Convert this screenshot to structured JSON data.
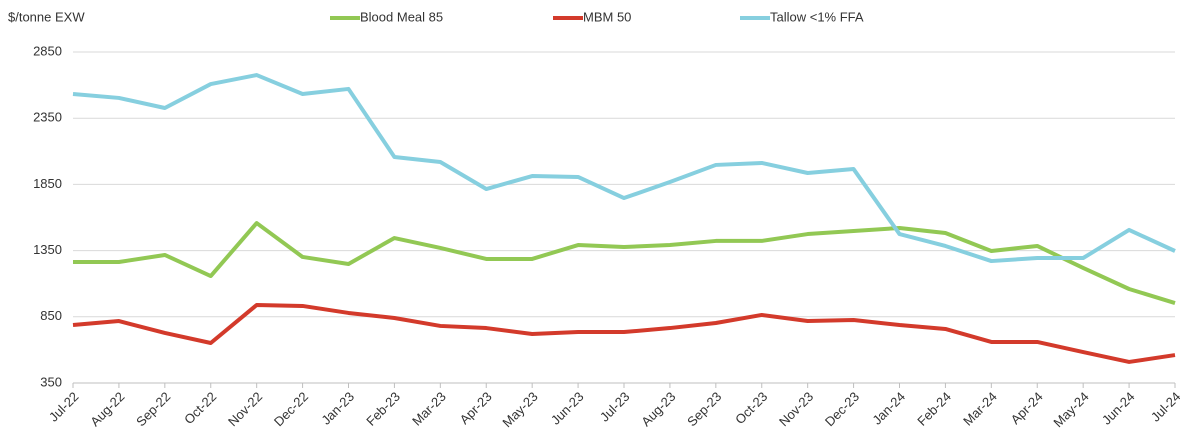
{
  "chart_data": {
    "type": "line",
    "y_label": "$/tonne EXW",
    "categories": [
      "Jul-22",
      "Aug-22",
      "Sep-22",
      "Oct-22",
      "Nov-22",
      "Dec-22",
      "Jan-23",
      "Feb-23",
      "Mar-23",
      "Apr-23",
      "May-23",
      "Jun-23",
      "Jul-23",
      "Aug-23",
      "Sep-23",
      "Oct-23",
      "Nov-23",
      "Dec-23",
      "Jan-24",
      "Feb-24",
      "Mar-24",
      "Apr-24",
      "May-24",
      "Jun-24",
      "Jul-24"
    ],
    "series": [
      {
        "name": "Blood Meal 85",
        "color": "#92c854",
        "values": [
          1264,
          1264,
          1317,
          1158,
          1558,
          1302,
          1249,
          1445,
          1370,
          1287,
          1287,
          1392,
          1377,
          1392,
          1423,
          1423,
          1475,
          1498,
          1521,
          1483,
          1347,
          1385,
          1219,
          1060,
          954
        ]
      },
      {
        "name": "MBM 50",
        "color": "#d33a2b",
        "values": [
          788,
          818,
          728,
          652,
          939,
          932,
          879,
          841,
          781,
          765,
          720,
          735,
          735,
          765,
          803,
          864,
          818,
          826,
          788,
          758,
          660,
          660,
          584,
          509,
          561
        ]
      },
      {
        "name": "Tallow <1% FFA",
        "color": "#86cfdf",
        "values": [
          2533,
          2503,
          2427,
          2608,
          2676,
          2533,
          2571,
          2057,
          2019,
          1815,
          1913,
          1906,
          1747,
          1868,
          1997,
          2012,
          1936,
          1966,
          1475,
          1385,
          1271,
          1294,
          1294,
          1506,
          1347
        ]
      }
    ],
    "ylim": [
      350,
      2850
    ],
    "yticks": [
      350,
      850,
      1350,
      1850,
      2350,
      2850
    ],
    "grid": true,
    "legend": "top"
  }
}
